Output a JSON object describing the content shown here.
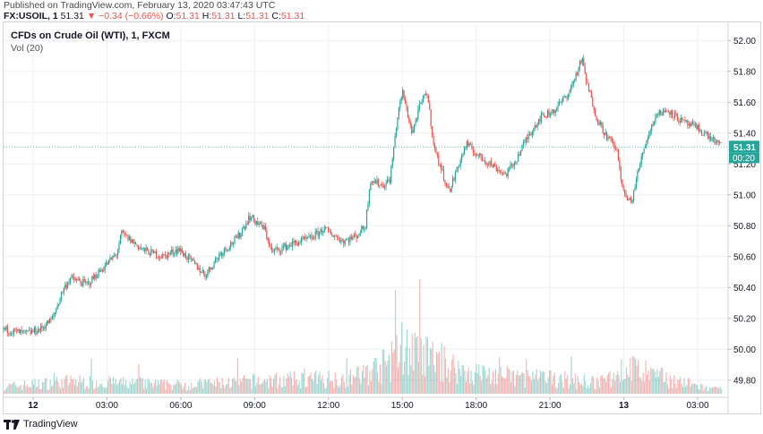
{
  "header": {
    "published": "Published on TradingView.com, February 13, 2020 03:47:43 UTC",
    "symbol": "FX:USOIL, 1",
    "last": "51.31",
    "change": "−0.34 (−0.66%)",
    "o_label": "O:",
    "o_val": "51.31",
    "h_label": "H:",
    "h_val": "51.31",
    "l_label": "L:",
    "l_val": "51.31",
    "c_label": "C:",
    "c_val": "51.31"
  },
  "legend": {
    "series_title": "CFDs on Crude Oil (WTI), 1, FXCM",
    "volume_title": "Vol (20)"
  },
  "footer": {
    "brand": "TradingView"
  },
  "colors": {
    "up": "#26a69a",
    "down": "#ef5350",
    "grid": "#eef0f3",
    "price_line": "#26a69a"
  },
  "chart_data": {
    "type": "candlestick",
    "symbol": "FX:USOIL",
    "interval": "1",
    "price_axis": {
      "ticks": [
        49.8,
        50.0,
        50.2,
        50.4,
        50.6,
        50.8,
        51.0,
        51.2,
        51.4,
        51.6,
        51.8,
        52.0
      ],
      "ylim": [
        49.7,
        52.1
      ]
    },
    "time_axis": {
      "ticks": [
        {
          "label": "12",
          "h": 0
        },
        {
          "label": "03:00",
          "h": 3
        },
        {
          "label": "06:00",
          "h": 6
        },
        {
          "label": "09:00",
          "h": 9
        },
        {
          "label": "12:00",
          "h": 12
        },
        {
          "label": "15:00",
          "h": 15
        },
        {
          "label": "18:00",
          "h": 18
        },
        {
          "label": "21:00",
          "h": 21
        },
        {
          "label": "13",
          "h": 24
        },
        {
          "label": "03:00",
          "h": 27
        }
      ],
      "xlim_hours": [
        -1.2,
        28.2
      ]
    },
    "last_price": 51.31,
    "last_price_label": "51.31",
    "countdown_label": "00:20",
    "price_path": [
      {
        "h": -1.2,
        "p": 50.13
      },
      {
        "h": -0.3,
        "p": 50.1
      },
      {
        "h": 0.3,
        "p": 50.13
      },
      {
        "h": 0.8,
        "p": 50.2
      },
      {
        "h": 1.2,
        "p": 50.38
      },
      {
        "h": 1.5,
        "p": 50.46
      },
      {
        "h": 2.2,
        "p": 50.42
      },
      {
        "h": 2.8,
        "p": 50.52
      },
      {
        "h": 3.4,
        "p": 50.62
      },
      {
        "h": 3.6,
        "p": 50.75
      },
      {
        "h": 4.5,
        "p": 50.64
      },
      {
        "h": 5.3,
        "p": 50.6
      },
      {
        "h": 5.9,
        "p": 50.65
      },
      {
        "h": 6.5,
        "p": 50.56
      },
      {
        "h": 7.0,
        "p": 50.48
      },
      {
        "h": 7.6,
        "p": 50.62
      },
      {
        "h": 8.3,
        "p": 50.72
      },
      {
        "h": 8.8,
        "p": 50.86
      },
      {
        "h": 9.4,
        "p": 50.78
      },
      {
        "h": 9.7,
        "p": 50.63
      },
      {
        "h": 10.5,
        "p": 50.68
      },
      {
        "h": 11.3,
        "p": 50.72
      },
      {
        "h": 11.8,
        "p": 50.78
      },
      {
        "h": 12.6,
        "p": 50.7
      },
      {
        "h": 13.1,
        "p": 50.73
      },
      {
        "h": 13.5,
        "p": 50.8
      },
      {
        "h": 13.7,
        "p": 51.1
      },
      {
        "h": 14.2,
        "p": 51.06
      },
      {
        "h": 14.5,
        "p": 51.1
      },
      {
        "h": 14.8,
        "p": 51.5
      },
      {
        "h": 15.0,
        "p": 51.67
      },
      {
        "h": 15.4,
        "p": 51.4
      },
      {
        "h": 15.7,
        "p": 51.57
      },
      {
        "h": 16.0,
        "p": 51.67
      },
      {
        "h": 16.3,
        "p": 51.3
      },
      {
        "h": 16.9,
        "p": 51.02
      },
      {
        "h": 17.3,
        "p": 51.2
      },
      {
        "h": 17.6,
        "p": 51.33
      },
      {
        "h": 18.1,
        "p": 51.25
      },
      {
        "h": 18.6,
        "p": 51.2
      },
      {
        "h": 19.2,
        "p": 51.13
      },
      {
        "h": 19.6,
        "p": 51.22
      },
      {
        "h": 20.1,
        "p": 51.38
      },
      {
        "h": 20.6,
        "p": 51.5
      },
      {
        "h": 21.2,
        "p": 51.55
      },
      {
        "h": 21.8,
        "p": 51.67
      },
      {
        "h": 22.3,
        "p": 51.88
      },
      {
        "h": 22.5,
        "p": 51.72
      },
      {
        "h": 22.9,
        "p": 51.5
      },
      {
        "h": 23.3,
        "p": 51.38
      },
      {
        "h": 23.7,
        "p": 51.3
      },
      {
        "h": 24.0,
        "p": 51.0
      },
      {
        "h": 24.3,
        "p": 50.95
      },
      {
        "h": 24.8,
        "p": 51.3
      },
      {
        "h": 25.3,
        "p": 51.52
      },
      {
        "h": 25.8,
        "p": 51.55
      },
      {
        "h": 26.4,
        "p": 51.47
      },
      {
        "h": 27.0,
        "p": 51.43
      },
      {
        "h": 27.6,
        "p": 51.36
      },
      {
        "h": 28.0,
        "p": 51.31
      }
    ],
    "volume_profile": [
      {
        "h": -1.2,
        "v": 0.08
      },
      {
        "h": 1.5,
        "v": 0.14
      },
      {
        "h": 6.0,
        "v": 0.1
      },
      {
        "h": 9.0,
        "v": 0.14
      },
      {
        "h": 13.0,
        "v": 0.18
      },
      {
        "h": 14.5,
        "v": 0.35
      },
      {
        "h": 15.0,
        "v": 0.55
      },
      {
        "h": 15.5,
        "v": 0.45
      },
      {
        "h": 16.2,
        "v": 0.4
      },
      {
        "h": 17.5,
        "v": 0.25
      },
      {
        "h": 19.0,
        "v": 0.2
      },
      {
        "h": 21.5,
        "v": 0.16
      },
      {
        "h": 23.0,
        "v": 0.12
      },
      {
        "h": 24.2,
        "v": 0.3
      },
      {
        "h": 25.0,
        "v": 0.22
      },
      {
        "h": 27.5,
        "v": 0.05
      }
    ]
  }
}
